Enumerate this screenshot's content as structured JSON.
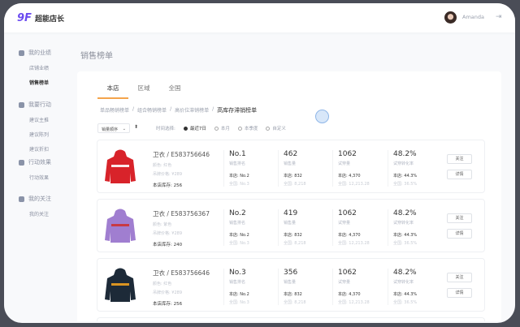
{
  "app": {
    "logo_mark": "9F",
    "name": "超能店长",
    "user": "Amanda",
    "logout_icon": "logout-icon"
  },
  "sidebar": [
    {
      "label": "我的业绩",
      "icon": "user-circle-icon",
      "items": [
        "店铺业绩",
        "销售榜单"
      ],
      "active": 1
    },
    {
      "label": "我要行动",
      "icon": "action-icon",
      "items": [
        "建议主推",
        "建议陈列",
        "建议折扣"
      ]
    },
    {
      "label": "行动效果",
      "icon": "chart-icon",
      "items": [
        "行动效果"
      ]
    },
    {
      "label": "我的关注",
      "icon": "heart-icon",
      "items": [
        "我的关注"
      ]
    }
  ],
  "page_title": "销售榜单",
  "tabs": [
    "本店",
    "区域",
    "全国"
  ],
  "breadcrumb": [
    "单品畅销榜单",
    "组合畅销榜单",
    "高价位滞销榜单",
    "高库存滞销榜单"
  ],
  "sort_select": "销量顺序",
  "time_filter": {
    "label": "时间选择:",
    "options": [
      "最近7日",
      "本月",
      "本季度",
      "自定义"
    ],
    "selected": 0
  },
  "accent": "#f4a44c",
  "rows": [
    {
      "name": "卫衣 / E583756646",
      "color": "颜色: 红色",
      "price": "吊牌价格: ¥289",
      "stock": "本店库存: 256",
      "rank": "No.1",
      "rank_label": "销售排名",
      "rank_store": "本店: No.2",
      "rank_all": "全国: No.3",
      "sales": "462",
      "sales_label": "销售量",
      "sales_store": "本店: 832",
      "sales_all": "全国: 8,218",
      "tries": "1062",
      "tries_label": "试穿量",
      "tries_store": "本店: 4,370",
      "tries_all": "全国: 12,213.28",
      "conv": "48.2%",
      "conv_label": "试穿转化率",
      "conv_store": "本店: 44.3%",
      "conv_all": "全国: 36.5%",
      "follow": "关注",
      "detail": "详情",
      "hoodie": "#d8232a",
      "print": "#fff"
    },
    {
      "name": "卫衣 / E583756367",
      "color": "颜色: 紫色",
      "price": "吊牌价格: ¥289",
      "stock": "本店库存: 240",
      "rank": "No.2",
      "rank_label": "销售排名",
      "rank_store": "本店: No.2",
      "rank_all": "全国: No.3",
      "sales": "419",
      "sales_label": "销售量",
      "sales_store": "本店: 832",
      "sales_all": "全国: 8,218",
      "tries": "1062",
      "tries_label": "试穿量",
      "tries_store": "本店: 4,370",
      "tries_all": "全国: 12,213.28",
      "conv": "48.2%",
      "conv_label": "试穿转化率",
      "conv_store": "本店: 44.3%",
      "conv_all": "全国: 36.5%",
      "follow": "关注",
      "detail": "详情",
      "hoodie": "#a07ed0",
      "print": "#c33"
    },
    {
      "name": "卫衣 / E583756646",
      "color": "颜色: 红色",
      "price": "吊牌价格: ¥289",
      "stock": "本店库存: 256",
      "rank": "No.3",
      "rank_label": "销售排名",
      "rank_store": "本店: No.2",
      "rank_all": "全国: No.3",
      "sales": "356",
      "sales_label": "销售量",
      "sales_store": "本店: 832",
      "sales_all": "全国: 8,218",
      "tries": "1062",
      "tries_label": "试穿量",
      "tries_store": "本店: 4,370",
      "tries_all": "全国: 12,213.28",
      "conv": "48.2%",
      "conv_label": "试穿转化率",
      "conv_store": "本店: 44.3%",
      "conv_all": "全国: 36.5%",
      "follow": "关注",
      "detail": "详情",
      "hoodie": "#1d2a38",
      "print": "#f0a020"
    }
  ]
}
